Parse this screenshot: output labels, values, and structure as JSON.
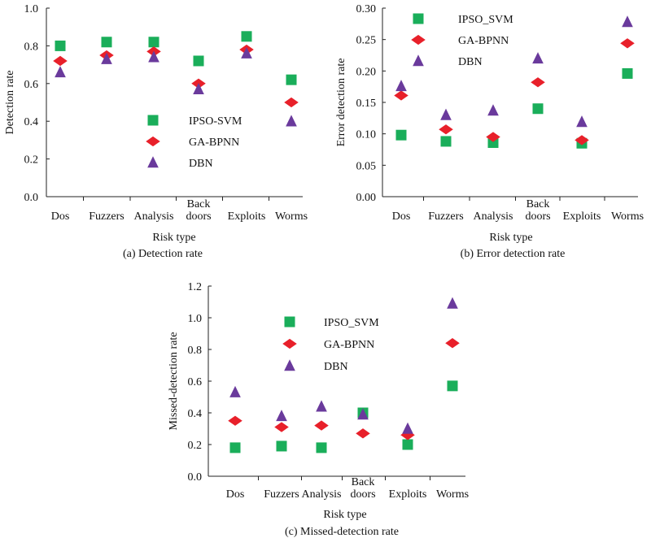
{
  "colors": {
    "ipso": "#1aae5a",
    "ga": "#e8202a",
    "dbn": "#6a3a9c",
    "axis": "#222222"
  },
  "chart_data": [
    {
      "type": "scatter",
      "caption": "(a) Detection rate",
      "xlabel": "Risk type",
      "ylabel": "Detection rate",
      "ylim": [
        0,
        1.0
      ],
      "yticks": [
        "0.0",
        "0.2",
        "0.4",
        "0.6",
        "0.8",
        "1.0"
      ],
      "yformat": 1,
      "categories": [
        "Dos",
        "Fuzzers",
        "Analysis",
        "Back\ndoors",
        "Exploits",
        "Worms"
      ],
      "legend": [
        "IPSO-SVM",
        "GA-BPNN",
        "DBN"
      ],
      "legend_position": "right-middle",
      "series": [
        {
          "name": "IPSO-SVM",
          "marker": "square",
          "values": [
            0.8,
            0.82,
            0.82,
            0.72,
            0.85,
            0.62
          ]
        },
        {
          "name": "GA-BPNN",
          "marker": "diamond",
          "values": [
            0.72,
            0.75,
            0.77,
            0.6,
            0.78,
            0.5
          ]
        },
        {
          "name": "DBN",
          "marker": "triangle",
          "values": [
            0.66,
            0.73,
            0.74,
            0.57,
            0.76,
            0.4
          ]
        }
      ]
    },
    {
      "type": "scatter",
      "caption": "(b) Error detection rate",
      "xlabel": "Risk type",
      "ylabel": "Error detection rate",
      "ylim": [
        0,
        0.3
      ],
      "yticks": [
        "0.00",
        "0.05",
        "0.10",
        "0.15",
        "0.20",
        "0.25",
        "0.30"
      ],
      "yformat": 2,
      "categories": [
        "Dos",
        "Fuzzers",
        "Analysis",
        "Back\ndoors",
        "Exploits",
        "Worms"
      ],
      "legend": [
        "IPSO_SVM",
        "GA-BPNN",
        "DBN"
      ],
      "legend_position": "top-middle",
      "series": [
        {
          "name": "IPSO_SVM",
          "marker": "square",
          "values": [
            0.098,
            0.088,
            0.086,
            0.14,
            0.085,
            0.196
          ]
        },
        {
          "name": "GA-BPNN",
          "marker": "diamond",
          "values": [
            0.161,
            0.107,
            0.095,
            0.182,
            0.09,
            0.244
          ]
        },
        {
          "name": "DBN",
          "marker": "triangle",
          "values": [
            0.176,
            0.13,
            0.137,
            0.22,
            0.119,
            0.278
          ]
        }
      ]
    },
    {
      "type": "scatter",
      "caption": "(c) Missed-detection rate",
      "xlabel": "Risk type",
      "ylabel": "Missed-detection rate",
      "ylim": [
        0,
        1.2
      ],
      "yticks": [
        "0.0",
        "0.2",
        "0.4",
        "0.6",
        "0.8",
        "1.0",
        "1.2"
      ],
      "yformat": 1,
      "categories": [
        "Dos",
        "Fuzzers",
        "Analysis",
        "Back\ndoors",
        "Exploits",
        "Worms"
      ],
      "legend": [
        "IPSO_SVM",
        "GA-BPNN",
        "DBN"
      ],
      "legend_position": "top-middle",
      "series": [
        {
          "name": "IPSO_SVM",
          "marker": "square",
          "values": [
            0.18,
            0.19,
            0.18,
            0.4,
            0.2,
            0.57
          ]
        },
        {
          "name": "GA-BPNN",
          "marker": "diamond",
          "values": [
            0.35,
            0.31,
            0.32,
            0.27,
            0.26,
            0.84
          ]
        },
        {
          "name": "DBN",
          "marker": "triangle",
          "values": [
            0.53,
            0.38,
            0.44,
            0.39,
            0.3,
            1.09
          ]
        }
      ]
    }
  ]
}
